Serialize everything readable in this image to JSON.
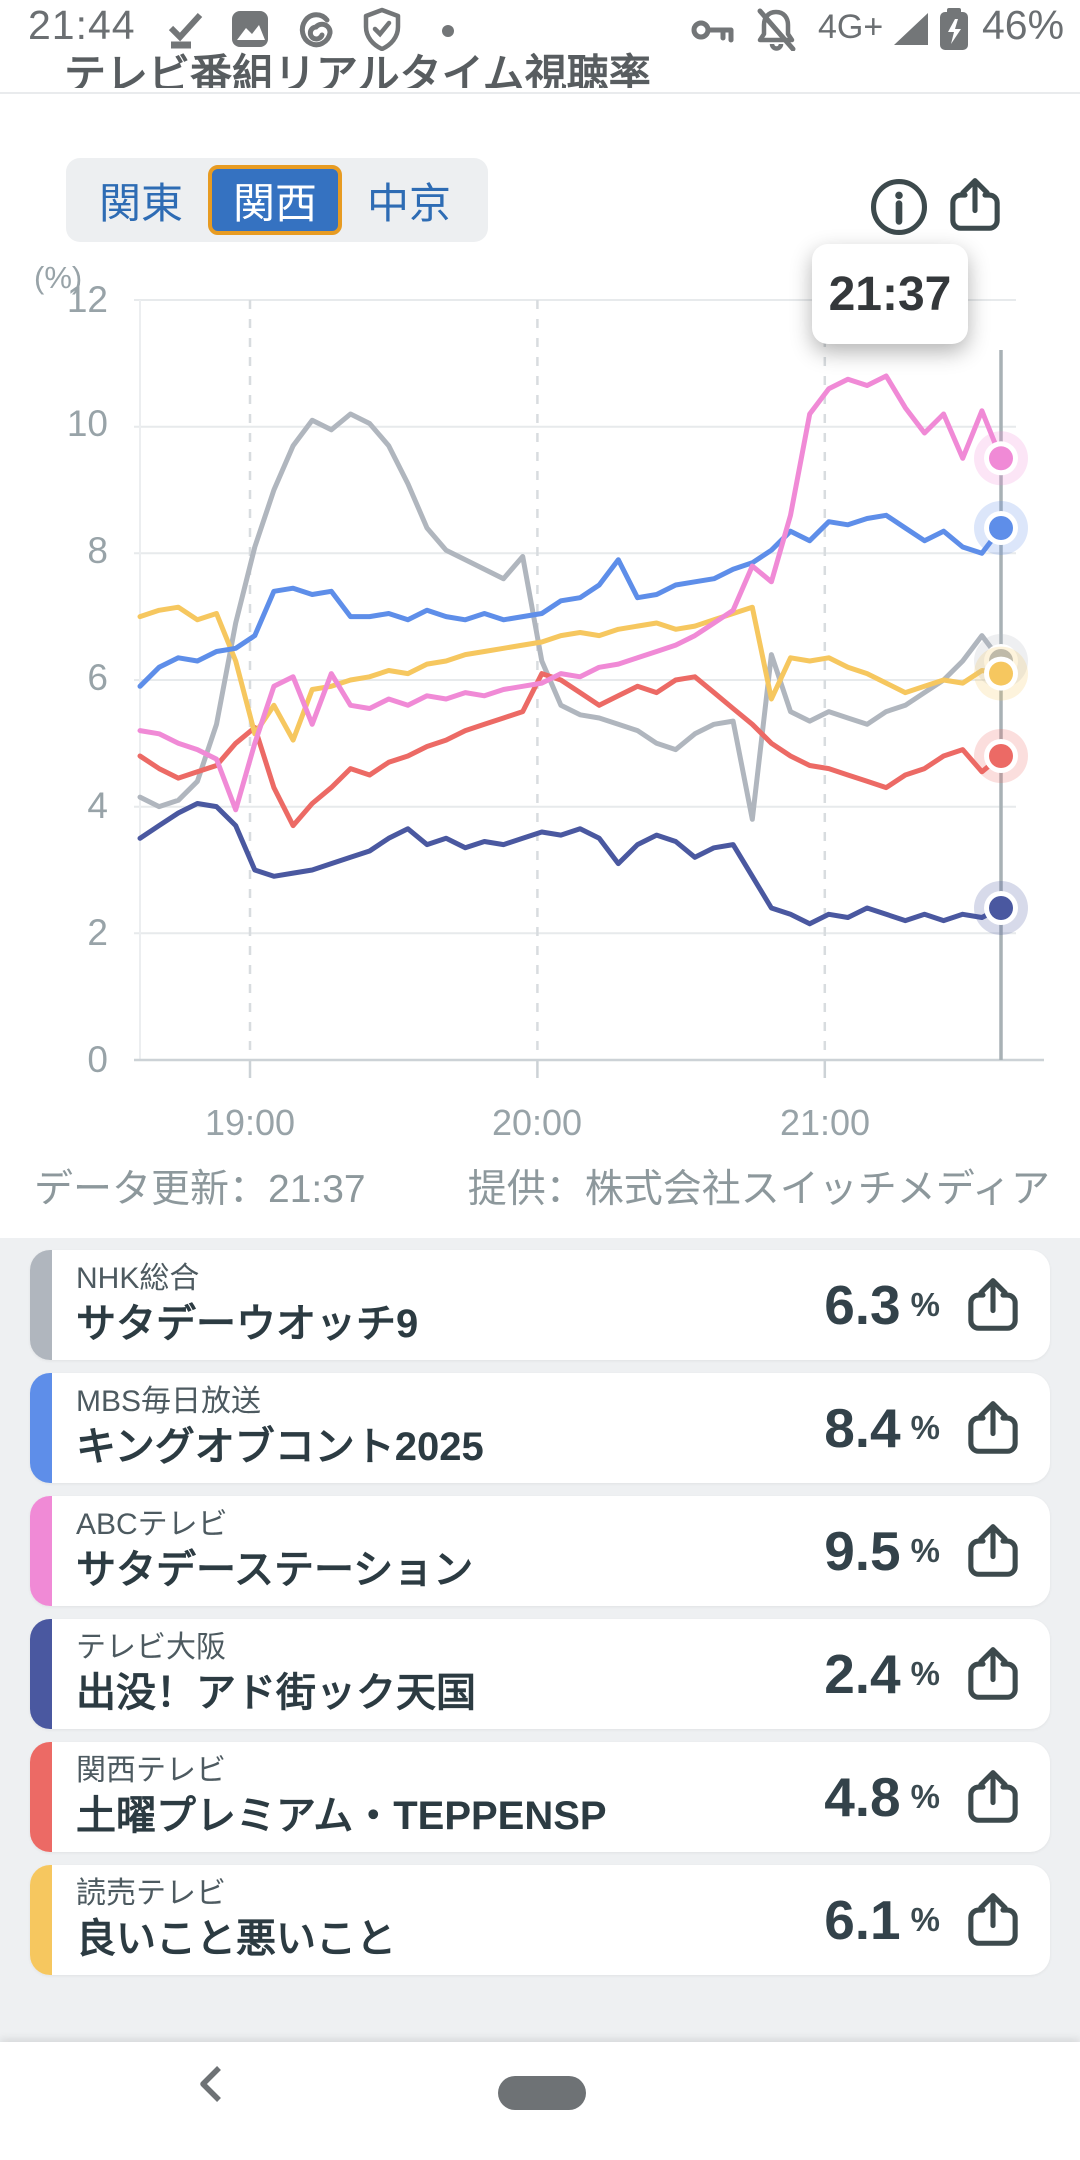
{
  "status_bar": {
    "time": "21:44",
    "network": "4G+",
    "battery": "46%",
    "icons_left": [
      "check-icon",
      "photos-icon",
      "threads-icon",
      "shield-check-icon",
      "notification-dot"
    ],
    "icons_right": [
      "key-icon",
      "bell-off-icon",
      "signal-icon",
      "battery-charging-icon"
    ]
  },
  "header": {
    "title": "テレビ番組リアルタイム視聴率"
  },
  "tabs": [
    {
      "label": "関東",
      "selected": false
    },
    {
      "label": "関西",
      "selected": true
    },
    {
      "label": "中京",
      "selected": false
    }
  ],
  "toolbar": {
    "info_icon": "info-icon",
    "share_icon": "share-icon"
  },
  "tooltip": {
    "time": "21:37"
  },
  "footer": {
    "updated": "データ更新：21:37",
    "provider": "提供：株式会社スイッチメディア"
  },
  "chart_data": {
    "type": "line",
    "title": "",
    "ylabel": "(%)",
    "ylim": [
      0,
      12
    ],
    "y_tick_labels": [
      "12",
      "10",
      "8",
      "6",
      "4",
      "2",
      "0"
    ],
    "x_ticks": [
      "19:00",
      "20:00",
      "21:00"
    ],
    "x_start": "18:37",
    "x_end": "21:37",
    "step_min": 4,
    "cursor_time": "21:37",
    "grid": true,
    "legend_position": "none",
    "series": [
      {
        "key": "nhk",
        "name": "NHK総合 サタデーウオッチ9",
        "color": "#b0b6be",
        "values": [
          4.15,
          4.0,
          4.1,
          4.4,
          5.3,
          6.9,
          8.1,
          9.0,
          9.7,
          10.1,
          9.95,
          10.2,
          10.05,
          9.7,
          9.1,
          8.4,
          8.05,
          7.9,
          7.75,
          7.6,
          7.95,
          6.3,
          5.6,
          5.45,
          5.4,
          5.3,
          5.2,
          5.0,
          4.9,
          5.15,
          5.3,
          5.35,
          3.8,
          6.4,
          5.5,
          5.35,
          5.5,
          5.4,
          5.3,
          5.5,
          5.6,
          5.8,
          6.0,
          6.3,
          6.7,
          6.3
        ]
      },
      {
        "key": "tvo",
        "name": "テレビ大阪 出没！アド街ック天国",
        "color": "#4a58a0",
        "values": [
          3.5,
          3.7,
          3.9,
          4.05,
          4.0,
          3.7,
          3.0,
          2.9,
          2.95,
          3.0,
          3.1,
          3.2,
          3.3,
          3.5,
          3.65,
          3.4,
          3.5,
          3.35,
          3.45,
          3.4,
          3.5,
          3.6,
          3.55,
          3.65,
          3.5,
          3.1,
          3.4,
          3.55,
          3.45,
          3.2,
          3.35,
          3.4,
          2.9,
          2.4,
          2.3,
          2.15,
          2.3,
          2.25,
          2.4,
          2.3,
          2.2,
          2.3,
          2.2,
          2.3,
          2.25,
          2.4
        ]
      },
      {
        "key": "ktv",
        "name": "関西テレビ 土曜プレミアム・TEPPENSP",
        "color": "#ec6a65",
        "values": [
          4.8,
          4.6,
          4.45,
          4.55,
          4.65,
          5.0,
          5.25,
          4.3,
          3.7,
          4.05,
          4.3,
          4.6,
          4.5,
          4.7,
          4.8,
          4.95,
          5.05,
          5.2,
          5.3,
          5.4,
          5.5,
          6.1,
          6.0,
          5.8,
          5.6,
          5.75,
          5.9,
          5.8,
          6.0,
          6.05,
          5.8,
          5.55,
          5.3,
          5.0,
          4.8,
          4.65,
          4.6,
          4.5,
          4.4,
          4.3,
          4.5,
          4.6,
          4.8,
          4.9,
          4.55,
          4.8
        ]
      },
      {
        "key": "ytv",
        "name": "読売テレビ 良いこと悪いこと",
        "color": "#f6c75f",
        "values": [
          7.0,
          7.1,
          7.15,
          6.95,
          7.05,
          6.3,
          5.15,
          5.6,
          5.05,
          5.85,
          5.9,
          6.0,
          6.05,
          6.15,
          6.1,
          6.25,
          6.3,
          6.4,
          6.45,
          6.5,
          6.55,
          6.6,
          6.7,
          6.75,
          6.7,
          6.8,
          6.85,
          6.9,
          6.8,
          6.85,
          6.95,
          7.05,
          7.15,
          5.7,
          6.35,
          6.3,
          6.35,
          6.2,
          6.1,
          5.95,
          5.8,
          5.9,
          6.0,
          5.95,
          6.15,
          6.1
        ]
      },
      {
        "key": "mbs",
        "name": "MBS毎日放送 キングオブコント2025",
        "color": "#5e8ee9",
        "values": [
          5.9,
          6.2,
          6.35,
          6.3,
          6.45,
          6.5,
          6.7,
          7.4,
          7.45,
          7.35,
          7.4,
          7.0,
          7.0,
          7.05,
          6.95,
          7.1,
          7.0,
          6.95,
          7.05,
          6.95,
          7.0,
          7.05,
          7.25,
          7.3,
          7.5,
          7.9,
          7.3,
          7.35,
          7.5,
          7.55,
          7.6,
          7.75,
          7.85,
          8.05,
          8.35,
          8.2,
          8.5,
          8.45,
          8.55,
          8.6,
          8.4,
          8.2,
          8.35,
          8.1,
          8.0,
          8.4
        ]
      },
      {
        "key": "abc",
        "name": "ABCテレビ サタデーステーション",
        "color": "#f08ad6",
        "values": [
          5.2,
          5.15,
          5.0,
          4.9,
          4.75,
          3.95,
          5.0,
          5.9,
          6.05,
          5.3,
          6.1,
          5.6,
          5.55,
          5.7,
          5.6,
          5.75,
          5.7,
          5.8,
          5.75,
          5.85,
          5.9,
          5.95,
          6.1,
          6.05,
          6.2,
          6.25,
          6.35,
          6.45,
          6.55,
          6.7,
          6.9,
          7.1,
          7.8,
          7.55,
          8.6,
          10.2,
          10.6,
          10.75,
          10.65,
          10.8,
          10.3,
          9.9,
          10.2,
          9.5,
          10.25,
          9.5
        ]
      }
    ]
  },
  "programs": [
    {
      "station": "NHK総合",
      "title": "サタデーウオッチ9",
      "rating": "6.3",
      "unit": "%",
      "color": "#b0b6be"
    },
    {
      "station": "MBS毎日放送",
      "title": "キングオブコント2025",
      "rating": "8.4",
      "unit": "%",
      "color": "#5e8ee9"
    },
    {
      "station": "ABCテレビ",
      "title": "サタデーステーション",
      "rating": "9.5",
      "unit": "%",
      "color": "#f08ad6"
    },
    {
      "station": "テレビ大阪",
      "title": "出没！アド街ック天国",
      "rating": "2.4",
      "unit": "%",
      "color": "#4a58a0"
    },
    {
      "station": "関西テレビ",
      "title": "土曜プレミアム・TEPPENSP",
      "rating": "4.8",
      "unit": "%",
      "color": "#ec6a65"
    },
    {
      "station": "読売テレビ",
      "title": "良いこと悪いこと",
      "rating": "6.1",
      "unit": "%",
      "color": "#f6c75f"
    }
  ],
  "colors": {
    "tab_selected_bg": "#3572c1",
    "tab_selected_border": "#e79b22",
    "tab_text": "#2e6cb4",
    "icon": "#3d4a4d",
    "axis_text": "#98a3a8",
    "cursor_line": "#a8b1b5",
    "list_bg": "#eef0f2"
  }
}
